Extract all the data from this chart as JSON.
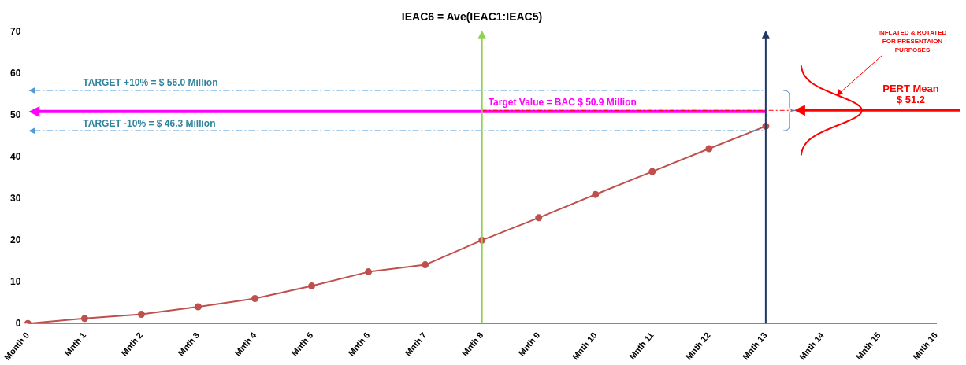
{
  "chart_data": {
    "type": "line",
    "title": "IEAC6 = Ave(IEAC1:IEAC5)",
    "categories": [
      "Month 0",
      "Mnth 1",
      "Mnth 2",
      "Mnth 3",
      "Mnth 4",
      "Mnth 5",
      "Mnth 6",
      "Mnth 7",
      "Mnth 8",
      "Mnth 9",
      "Mnth 10",
      "Mnth 11",
      "Mnth 12",
      "Mnth 13",
      "Mnth 14",
      "Mnth 15",
      "Mnth 16"
    ],
    "series": [
      {
        "color": "#c0504d",
        "values": [
          0,
          1.2,
          2.2,
          4,
          6,
          9,
          12.4,
          14.1,
          20,
          25.4,
          31,
          36.5,
          42,
          47.4,
          null,
          null,
          null
        ]
      }
    ],
    "ylim": [
      0,
      70
    ],
    "yticks": [
      0,
      10,
      20,
      30,
      40,
      50,
      60,
      70
    ],
    "grid": false,
    "legend": false,
    "marker": "circle",
    "line_style": "solid",
    "ref_lines": [
      {
        "axis": "y",
        "value": 56.0,
        "label": "TARGET +10% = $ 56.0 Million",
        "color": "#4f9bd9",
        "line_style": "dashed"
      },
      {
        "axis": "y",
        "value": 46.3,
        "label": "TARGET -10% = $ 46.3 Million",
        "color": "#4f9bd9",
        "line_style": "dashed"
      },
      {
        "axis": "y",
        "value": 50.9,
        "label": "Target Value = BAC $ 50.9 Million",
        "color": "#ff00ff",
        "line_style": "solid"
      },
      {
        "axis": "y",
        "value": 51.2,
        "label": "PERT Mean $ 51.2",
        "color": "#ff0000",
        "line_style": "solid"
      },
      {
        "axis": "x",
        "value": "Mnth 8",
        "color": "#92d050",
        "line_style": "solid"
      },
      {
        "axis": "x",
        "value": "Mnth 13",
        "color": "#1f3864",
        "line_style": "solid"
      }
    ],
    "annotations": [
      "INFLATED & ROTATED FOR PRESENTAION PURPOSES"
    ]
  }
}
